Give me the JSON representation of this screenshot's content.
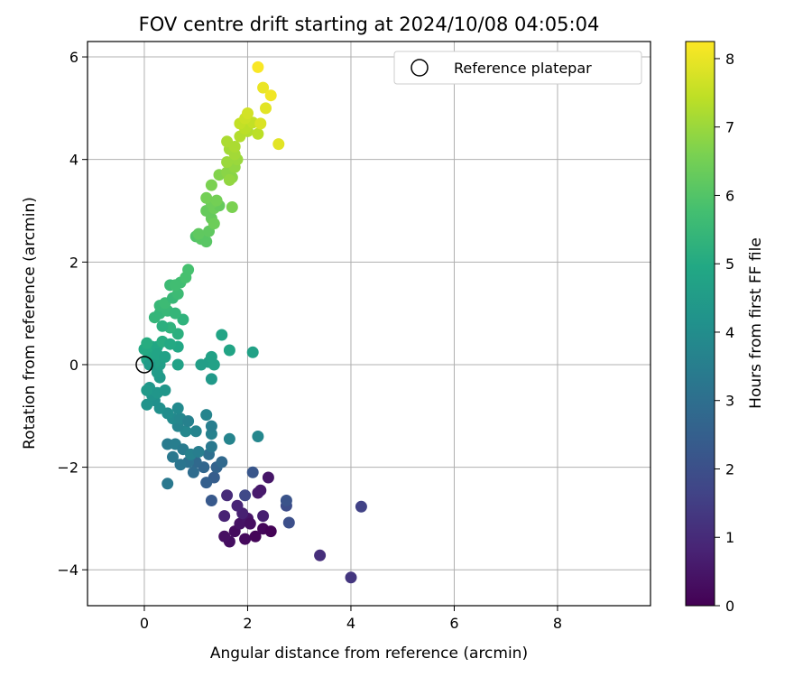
{
  "chart_data": {
    "type": "scatter",
    "title": "FOV centre drift starting at 2024/10/08 04:05:04",
    "xlabel": "Angular distance from reference (arcmin)",
    "ylabel": "Rotation from reference (arcmin)",
    "xlim": [
      -1.1,
      9.8
    ],
    "ylim": [
      -4.7,
      6.3
    ],
    "xticks": [
      0,
      2,
      4,
      6,
      8
    ],
    "yticks": [
      -4,
      -2,
      0,
      2,
      4,
      6
    ],
    "grid": true,
    "legend_position": "top-right",
    "colorbar": {
      "label": "Hours from first FF file",
      "colormap": "viridis",
      "range": [
        0,
        8.25
      ],
      "ticks": [
        0,
        1,
        2,
        3,
        4,
        5,
        6,
        7,
        8
      ]
    },
    "reference": {
      "name": "Reference platepar",
      "x": 0,
      "y": 0
    },
    "points": [
      {
        "x": 1.95,
        "y": -3.4,
        "h": 0.2
      },
      {
        "x": 1.75,
        "y": -3.25,
        "h": 0.25
      },
      {
        "x": 2.15,
        "y": -3.35,
        "h": 0.1
      },
      {
        "x": 2.3,
        "y": -3.2,
        "h": 0.15
      },
      {
        "x": 2.45,
        "y": -3.25,
        "h": 0.05
      },
      {
        "x": 1.65,
        "y": -3.45,
        "h": 0.3
      },
      {
        "x": 1.55,
        "y": -3.35,
        "h": 0.35
      },
      {
        "x": 1.85,
        "y": -3.1,
        "h": 0.4
      },
      {
        "x": 2.0,
        "y": -3.0,
        "h": 0.45
      },
      {
        "x": 2.4,
        "y": -2.2,
        "h": 0.5
      },
      {
        "x": 2.25,
        "y": -2.45,
        "h": 0.55
      },
      {
        "x": 2.2,
        "y": -2.5,
        "h": 0.6
      },
      {
        "x": 2.3,
        "y": -2.95,
        "h": 0.7
      },
      {
        "x": 1.9,
        "y": -2.9,
        "h": 0.75
      },
      {
        "x": 1.55,
        "y": -2.95,
        "h": 0.8
      },
      {
        "x": 1.8,
        "y": -2.75,
        "h": 0.85
      },
      {
        "x": 2.05,
        "y": -3.1,
        "h": 0.3
      },
      {
        "x": 1.6,
        "y": -2.55,
        "h": 1.0
      },
      {
        "x": 3.4,
        "y": -3.72,
        "h": 1.1
      },
      {
        "x": 4.0,
        "y": -4.15,
        "h": 1.3
      },
      {
        "x": 4.2,
        "y": -2.77,
        "h": 1.6
      },
      {
        "x": 2.75,
        "y": -2.75,
        "h": 1.9
      },
      {
        "x": 2.8,
        "y": -3.08,
        "h": 2.0
      },
      {
        "x": 2.75,
        "y": -2.65,
        "h": 2.1
      },
      {
        "x": 1.95,
        "y": -2.55,
        "h": 1.8
      },
      {
        "x": 2.1,
        "y": -2.1,
        "h": 2.2
      },
      {
        "x": 1.3,
        "y": -2.65,
        "h": 2.3
      },
      {
        "x": 1.35,
        "y": -2.2,
        "h": 2.4
      },
      {
        "x": 1.2,
        "y": -2.3,
        "h": 2.5
      },
      {
        "x": 1.4,
        "y": -2.0,
        "h": 2.6
      },
      {
        "x": 1.15,
        "y": -2.0,
        "h": 2.7
      },
      {
        "x": 1.0,
        "y": -1.9,
        "h": 2.8
      },
      {
        "x": 0.95,
        "y": -2.1,
        "h": 2.9
      },
      {
        "x": 1.5,
        "y": -1.9,
        "h": 2.8
      },
      {
        "x": 1.25,
        "y": -1.75,
        "h": 3.0
      },
      {
        "x": 0.85,
        "y": -1.9,
        "h": 3.1
      },
      {
        "x": 0.7,
        "y": -1.95,
        "h": 3.2
      },
      {
        "x": 0.55,
        "y": -1.8,
        "h": 3.3
      },
      {
        "x": 0.45,
        "y": -2.32,
        "h": 3.3
      },
      {
        "x": 0.45,
        "y": -1.55,
        "h": 3.4
      },
      {
        "x": 0.6,
        "y": -1.55,
        "h": 3.5
      },
      {
        "x": 0.75,
        "y": -1.65,
        "h": 3.4
      },
      {
        "x": 0.9,
        "y": -1.75,
        "h": 3.6
      },
      {
        "x": 1.05,
        "y": -1.7,
        "h": 3.5
      },
      {
        "x": 1.3,
        "y": -1.6,
        "h": 3.3
      },
      {
        "x": 1.65,
        "y": -1.45,
        "h": 3.7
      },
      {
        "x": 2.2,
        "y": -1.4,
        "h": 3.8
      },
      {
        "x": 1.3,
        "y": -1.35,
        "h": 3.6
      },
      {
        "x": 1.0,
        "y": -1.3,
        "h": 3.7
      },
      {
        "x": 0.8,
        "y": -1.3,
        "h": 3.8
      },
      {
        "x": 0.65,
        "y": -1.2,
        "h": 3.7
      },
      {
        "x": 0.55,
        "y": -1.05,
        "h": 3.9
      },
      {
        "x": 0.7,
        "y": -1.05,
        "h": 3.8
      },
      {
        "x": 0.85,
        "y": -1.1,
        "h": 3.6
      },
      {
        "x": 1.3,
        "y": -1.2,
        "h": 3.5
      },
      {
        "x": 1.2,
        "y": -0.98,
        "h": 3.7
      },
      {
        "x": 0.65,
        "y": -0.85,
        "h": 3.9
      },
      {
        "x": 0.45,
        "y": -0.95,
        "h": 4.0
      },
      {
        "x": 0.3,
        "y": -0.85,
        "h": 4.1
      },
      {
        "x": 0.2,
        "y": -0.7,
        "h": 4.1
      },
      {
        "x": 0.05,
        "y": -0.78,
        "h": 4.2
      },
      {
        "x": 0.15,
        "y": -0.6,
        "h": 4.2
      },
      {
        "x": 0.25,
        "y": -0.55,
        "h": 4.3
      },
      {
        "x": 0.4,
        "y": -0.5,
        "h": 4.3
      },
      {
        "x": 0.1,
        "y": -0.45,
        "h": 4.3
      },
      {
        "x": 0.05,
        "y": -0.5,
        "h": 4.4
      },
      {
        "x": 0.3,
        "y": -0.25,
        "h": 4.4
      },
      {
        "x": 0.25,
        "y": -0.15,
        "h": 4.5
      },
      {
        "x": 1.3,
        "y": -0.28,
        "h": 4.4
      },
      {
        "x": 1.25,
        "y": 0.05,
        "h": 4.6
      },
      {
        "x": 1.35,
        "y": 0.0,
        "h": 4.7
      },
      {
        "x": 1.1,
        "y": 0.0,
        "h": 4.6
      },
      {
        "x": 1.3,
        "y": 0.15,
        "h": 4.7
      },
      {
        "x": 1.65,
        "y": 0.28,
        "h": 4.8
      },
      {
        "x": 2.1,
        "y": 0.24,
        "h": 4.7
      },
      {
        "x": 1.5,
        "y": 0.58,
        "h": 4.8
      },
      {
        "x": 0.65,
        "y": 0.0,
        "h": 4.7
      },
      {
        "x": 0.65,
        "y": 0.35,
        "h": 4.9
      },
      {
        "x": 0.3,
        "y": 0.0,
        "h": 4.6
      },
      {
        "x": 0.2,
        "y": 0.05,
        "h": 4.7
      },
      {
        "x": 0.05,
        "y": 0.1,
        "h": 4.8
      },
      {
        "x": 0.1,
        "y": 0.2,
        "h": 4.9
      },
      {
        "x": 0.0,
        "y": 0.3,
        "h": 5.0
      },
      {
        "x": 0.15,
        "y": 0.35,
        "h": 5.0
      },
      {
        "x": 0.25,
        "y": 0.35,
        "h": 4.9
      },
      {
        "x": 0.35,
        "y": 0.45,
        "h": 5.1
      },
      {
        "x": 0.5,
        "y": 0.4,
        "h": 5.0
      },
      {
        "x": 0.05,
        "y": 0.42,
        "h": 5.1
      },
      {
        "x": 0.1,
        "y": 0.0,
        "h": 4.5
      },
      {
        "x": 0.25,
        "y": 0.2,
        "h": 4.8
      },
      {
        "x": 0.4,
        "y": 0.15,
        "h": 4.7
      },
      {
        "x": 0.65,
        "y": 0.6,
        "h": 5.2
      },
      {
        "x": 0.75,
        "y": 0.88,
        "h": 5.3
      },
      {
        "x": 0.5,
        "y": 0.72,
        "h": 5.3
      },
      {
        "x": 0.35,
        "y": 0.75,
        "h": 5.2
      },
      {
        "x": 0.2,
        "y": 0.92,
        "h": 5.4
      },
      {
        "x": 0.3,
        "y": 1.0,
        "h": 5.4
      },
      {
        "x": 0.45,
        "y": 1.05,
        "h": 5.5
      },
      {
        "x": 0.6,
        "y": 1.0,
        "h": 5.4
      },
      {
        "x": 0.3,
        "y": 1.15,
        "h": 5.5
      },
      {
        "x": 0.4,
        "y": 1.2,
        "h": 5.6
      },
      {
        "x": 0.55,
        "y": 1.3,
        "h": 5.5
      },
      {
        "x": 0.65,
        "y": 1.38,
        "h": 5.6
      },
      {
        "x": 0.5,
        "y": 1.55,
        "h": 5.6
      },
      {
        "x": 0.7,
        "y": 1.6,
        "h": 5.7
      },
      {
        "x": 0.8,
        "y": 1.7,
        "h": 5.8
      },
      {
        "x": 0.85,
        "y": 1.85,
        "h": 5.8
      },
      {
        "x": 0.6,
        "y": 1.55,
        "h": 5.7
      },
      {
        "x": 1.0,
        "y": 2.5,
        "h": 6.0
      },
      {
        "x": 1.1,
        "y": 2.45,
        "h": 6.1
      },
      {
        "x": 1.2,
        "y": 2.4,
        "h": 6.1
      },
      {
        "x": 1.05,
        "y": 2.55,
        "h": 6.2
      },
      {
        "x": 1.25,
        "y": 2.6,
        "h": 6.2
      },
      {
        "x": 1.3,
        "y": 2.85,
        "h": 6.3
      },
      {
        "x": 1.2,
        "y": 3.0,
        "h": 6.3
      },
      {
        "x": 1.35,
        "y": 3.05,
        "h": 6.4
      },
      {
        "x": 1.45,
        "y": 3.1,
        "h": 6.3
      },
      {
        "x": 1.3,
        "y": 3.15,
        "h": 6.4
      },
      {
        "x": 1.4,
        "y": 3.2,
        "h": 6.5
      },
      {
        "x": 1.2,
        "y": 3.25,
        "h": 6.5
      },
      {
        "x": 1.7,
        "y": 3.07,
        "h": 6.6
      },
      {
        "x": 1.35,
        "y": 2.75,
        "h": 6.4
      },
      {
        "x": 1.3,
        "y": 3.5,
        "h": 6.6
      },
      {
        "x": 1.45,
        "y": 3.7,
        "h": 6.7
      },
      {
        "x": 1.6,
        "y": 3.75,
        "h": 6.8
      },
      {
        "x": 1.7,
        "y": 3.65,
        "h": 6.8
      },
      {
        "x": 1.65,
        "y": 3.6,
        "h": 6.9
      },
      {
        "x": 1.75,
        "y": 3.85,
        "h": 6.9
      },
      {
        "x": 1.6,
        "y": 3.95,
        "h": 7.0
      },
      {
        "x": 1.8,
        "y": 4.0,
        "h": 7.0
      },
      {
        "x": 1.75,
        "y": 4.1,
        "h": 7.1
      },
      {
        "x": 1.65,
        "y": 4.2,
        "h": 7.1
      },
      {
        "x": 1.6,
        "y": 4.35,
        "h": 7.2
      },
      {
        "x": 1.75,
        "y": 4.25,
        "h": 7.2
      },
      {
        "x": 1.85,
        "y": 4.45,
        "h": 7.3
      },
      {
        "x": 2.0,
        "y": 4.55,
        "h": 7.3
      },
      {
        "x": 1.95,
        "y": 4.6,
        "h": 7.4
      },
      {
        "x": 1.85,
        "y": 4.7,
        "h": 7.5
      },
      {
        "x": 2.1,
        "y": 4.72,
        "h": 7.5
      },
      {
        "x": 1.95,
        "y": 4.8,
        "h": 7.6
      },
      {
        "x": 2.0,
        "y": 4.9,
        "h": 7.7
      },
      {
        "x": 2.2,
        "y": 4.5,
        "h": 7.4
      },
      {
        "x": 2.25,
        "y": 4.7,
        "h": 7.8
      },
      {
        "x": 2.35,
        "y": 5.0,
        "h": 7.9
      },
      {
        "x": 2.3,
        "y": 5.4,
        "h": 8.0
      },
      {
        "x": 2.45,
        "y": 5.25,
        "h": 8.1
      },
      {
        "x": 2.2,
        "y": 5.8,
        "h": 8.2
      },
      {
        "x": 2.6,
        "y": 4.3,
        "h": 7.9
      }
    ]
  }
}
